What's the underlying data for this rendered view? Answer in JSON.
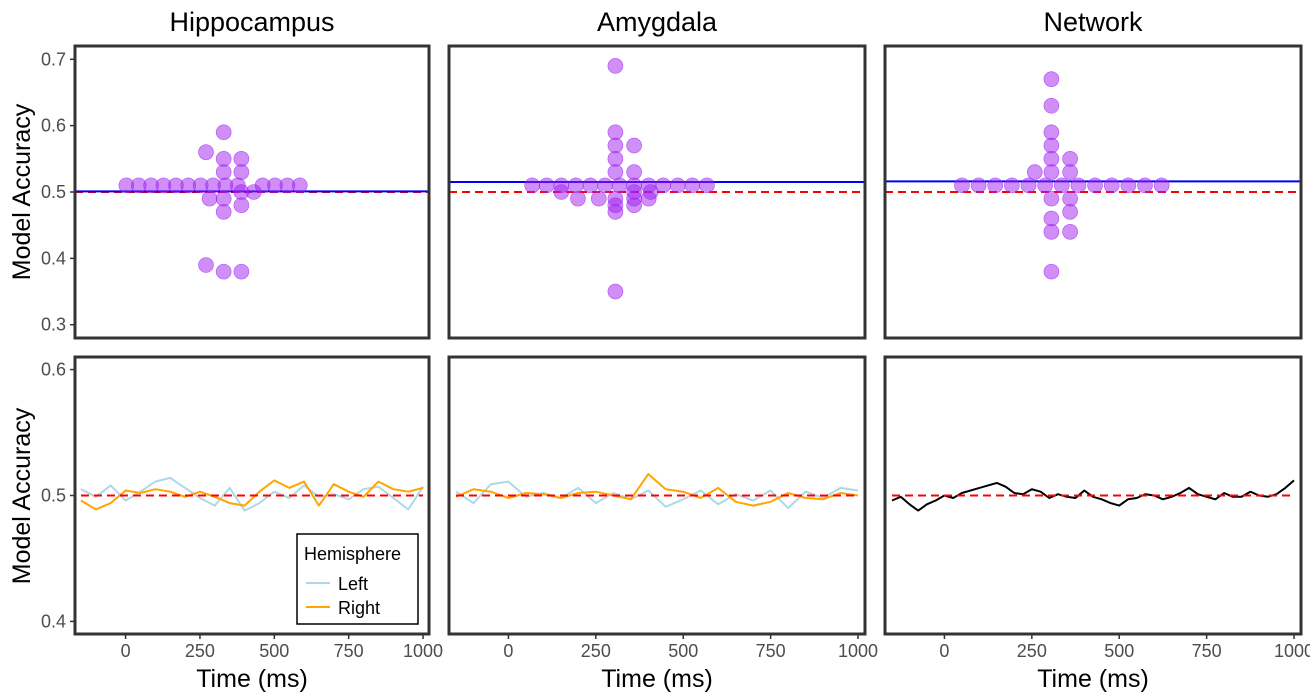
{
  "figure": {
    "ylabel": "Model Accuracy",
    "xlabel": "Time (ms)"
  },
  "legend": {
    "title": "Hemisphere",
    "items": [
      {
        "label": "Left",
        "color": "#add8e6"
      },
      {
        "label": "Right",
        "color": "#ffa500"
      }
    ]
  },
  "colors": {
    "points": "#a020f0",
    "mean_line": "#0000ff",
    "chance_line": "#ff0000",
    "network_line": "#000000"
  },
  "chart_data": [
    {
      "type": "scatter",
      "panel": "top-left",
      "title": "Hippocampus",
      "ylim": [
        0.28,
        0.72
      ],
      "yticks": [
        "0.3",
        "0.4",
        "0.5",
        "0.6",
        "0.7"
      ],
      "mean_line": 0.501,
      "chance_line": 0.5,
      "points": [
        {
          "x": 0.145,
          "y": 0.51
        },
        {
          "x": 0.18,
          "y": 0.51
        },
        {
          "x": 0.215,
          "y": 0.51
        },
        {
          "x": 0.25,
          "y": 0.51
        },
        {
          "x": 0.285,
          "y": 0.51
        },
        {
          "x": 0.32,
          "y": 0.51
        },
        {
          "x": 0.355,
          "y": 0.51
        },
        {
          "x": 0.39,
          "y": 0.51
        },
        {
          "x": 0.425,
          "y": 0.51
        },
        {
          "x": 0.46,
          "y": 0.51
        },
        {
          "x": 0.53,
          "y": 0.51
        },
        {
          "x": 0.565,
          "y": 0.51
        },
        {
          "x": 0.6,
          "y": 0.51
        },
        {
          "x": 0.635,
          "y": 0.51
        },
        {
          "x": 0.42,
          "y": 0.59
        },
        {
          "x": 0.37,
          "y": 0.56
        },
        {
          "x": 0.42,
          "y": 0.55
        },
        {
          "x": 0.47,
          "y": 0.55
        },
        {
          "x": 0.42,
          "y": 0.53
        },
        {
          "x": 0.47,
          "y": 0.53
        },
        {
          "x": 0.38,
          "y": 0.49
        },
        {
          "x": 0.42,
          "y": 0.49
        },
        {
          "x": 0.47,
          "y": 0.5
        },
        {
          "x": 0.505,
          "y": 0.5
        },
        {
          "x": 0.47,
          "y": 0.48
        },
        {
          "x": 0.42,
          "y": 0.47
        },
        {
          "x": 0.37,
          "y": 0.39
        },
        {
          "x": 0.42,
          "y": 0.38
        },
        {
          "x": 0.47,
          "y": 0.38
        }
      ]
    },
    {
      "type": "scatter",
      "panel": "top-middle",
      "title": "Amygdala",
      "ylim": [
        0.28,
        0.72
      ],
      "yticks": [
        "0.3",
        "0.4",
        "0.5",
        "0.6",
        "0.7"
      ],
      "mean_line": 0.515,
      "chance_line": 0.5,
      "points": [
        {
          "x": 0.2,
          "y": 0.51
        },
        {
          "x": 0.235,
          "y": 0.51
        },
        {
          "x": 0.27,
          "y": 0.51
        },
        {
          "x": 0.305,
          "y": 0.51
        },
        {
          "x": 0.34,
          "y": 0.51
        },
        {
          "x": 0.375,
          "y": 0.51
        },
        {
          "x": 0.41,
          "y": 0.51
        },
        {
          "x": 0.445,
          "y": 0.51
        },
        {
          "x": 0.48,
          "y": 0.51
        },
        {
          "x": 0.515,
          "y": 0.51
        },
        {
          "x": 0.55,
          "y": 0.51
        },
        {
          "x": 0.585,
          "y": 0.51
        },
        {
          "x": 0.62,
          "y": 0.51
        },
        {
          "x": 0.4,
          "y": 0.69
        },
        {
          "x": 0.4,
          "y": 0.59
        },
        {
          "x": 0.4,
          "y": 0.57
        },
        {
          "x": 0.445,
          "y": 0.57
        },
        {
          "x": 0.4,
          "y": 0.55
        },
        {
          "x": 0.4,
          "y": 0.53
        },
        {
          "x": 0.445,
          "y": 0.53
        },
        {
          "x": 0.27,
          "y": 0.5
        },
        {
          "x": 0.445,
          "y": 0.5
        },
        {
          "x": 0.485,
          "y": 0.5
        },
        {
          "x": 0.31,
          "y": 0.49
        },
        {
          "x": 0.36,
          "y": 0.49
        },
        {
          "x": 0.4,
          "y": 0.49
        },
        {
          "x": 0.445,
          "y": 0.49
        },
        {
          "x": 0.48,
          "y": 0.49
        },
        {
          "x": 0.4,
          "y": 0.48
        },
        {
          "x": 0.445,
          "y": 0.48
        },
        {
          "x": 0.4,
          "y": 0.47
        },
        {
          "x": 0.4,
          "y": 0.35
        }
      ]
    },
    {
      "type": "scatter",
      "panel": "top-right",
      "title": "Network",
      "ylim": [
        0.28,
        0.72
      ],
      "yticks": [
        "0.3",
        "0.4",
        "0.5",
        "0.6",
        "0.7"
      ],
      "mean_line": 0.516,
      "chance_line": 0.5,
      "points": [
        {
          "x": 0.185,
          "y": 0.51
        },
        {
          "x": 0.225,
          "y": 0.51
        },
        {
          "x": 0.265,
          "y": 0.51
        },
        {
          "x": 0.305,
          "y": 0.51
        },
        {
          "x": 0.345,
          "y": 0.51
        },
        {
          "x": 0.385,
          "y": 0.51
        },
        {
          "x": 0.425,
          "y": 0.51
        },
        {
          "x": 0.465,
          "y": 0.51
        },
        {
          "x": 0.505,
          "y": 0.51
        },
        {
          "x": 0.545,
          "y": 0.51
        },
        {
          "x": 0.585,
          "y": 0.51
        },
        {
          "x": 0.625,
          "y": 0.51
        },
        {
          "x": 0.665,
          "y": 0.51
        },
        {
          "x": 0.4,
          "y": 0.67
        },
        {
          "x": 0.4,
          "y": 0.63
        },
        {
          "x": 0.4,
          "y": 0.59
        },
        {
          "x": 0.4,
          "y": 0.57
        },
        {
          "x": 0.4,
          "y": 0.55
        },
        {
          "x": 0.445,
          "y": 0.55
        },
        {
          "x": 0.36,
          "y": 0.53
        },
        {
          "x": 0.4,
          "y": 0.53
        },
        {
          "x": 0.445,
          "y": 0.53
        },
        {
          "x": 0.4,
          "y": 0.49
        },
        {
          "x": 0.445,
          "y": 0.49
        },
        {
          "x": 0.445,
          "y": 0.47
        },
        {
          "x": 0.4,
          "y": 0.46
        },
        {
          "x": 0.4,
          "y": 0.44
        },
        {
          "x": 0.445,
          "y": 0.44
        },
        {
          "x": 0.4,
          "y": 0.38
        }
      ]
    },
    {
      "type": "line",
      "panel": "bottom-left",
      "xlim": [
        -170,
        1020
      ],
      "ylim": [
        0.39,
        0.61
      ],
      "xticks": [
        "0",
        "250",
        "500",
        "750",
        "1000"
      ],
      "yticks": [
        "0.4",
        "0.5",
        "0.6"
      ],
      "chance_line": 0.5,
      "series": [
        {
          "name": "Left",
          "x": [
            -150,
            -100,
            -50,
            0,
            50,
            100,
            150,
            200,
            250,
            300,
            350,
            400,
            450,
            500,
            550,
            600,
            650,
            700,
            750,
            800,
            850,
            900,
            950,
            1000
          ],
          "y": [
            0.505,
            0.499,
            0.508,
            0.496,
            0.503,
            0.511,
            0.514,
            0.506,
            0.498,
            0.492,
            0.506,
            0.488,
            0.494,
            0.503,
            0.498,
            0.508,
            0.499,
            0.501,
            0.497,
            0.505,
            0.507,
            0.498,
            0.489,
            0.507
          ]
        },
        {
          "name": "Right",
          "x": [
            -150,
            -100,
            -50,
            0,
            50,
            100,
            150,
            200,
            250,
            300,
            350,
            400,
            450,
            500,
            550,
            600,
            650,
            700,
            750,
            800,
            850,
            900,
            950,
            1000
          ],
          "y": [
            0.496,
            0.489,
            0.494,
            0.504,
            0.502,
            0.505,
            0.503,
            0.499,
            0.503,
            0.499,
            0.494,
            0.492,
            0.503,
            0.512,
            0.506,
            0.511,
            0.492,
            0.509,
            0.503,
            0.499,
            0.511,
            0.505,
            0.503,
            0.506
          ]
        }
      ]
    },
    {
      "type": "line",
      "panel": "bottom-middle",
      "xlim": [
        -170,
        1020
      ],
      "ylim": [
        0.39,
        0.61
      ],
      "xticks": [
        "0",
        "250",
        "500",
        "750",
        "1000"
      ],
      "yticks": [
        "0.4",
        "0.5",
        "0.6"
      ],
      "chance_line": 0.5,
      "series": [
        {
          "name": "Left",
          "x": [
            -150,
            -100,
            -50,
            0,
            50,
            100,
            150,
            200,
            250,
            300,
            350,
            400,
            450,
            500,
            550,
            600,
            650,
            700,
            750,
            800,
            850,
            900,
            950,
            1000
          ],
          "y": [
            0.503,
            0.494,
            0.509,
            0.511,
            0.499,
            0.502,
            0.498,
            0.506,
            0.494,
            0.502,
            0.497,
            0.504,
            0.491,
            0.497,
            0.504,
            0.493,
            0.501,
            0.496,
            0.504,
            0.49,
            0.503,
            0.498,
            0.506,
            0.504
          ]
        },
        {
          "name": "Right",
          "x": [
            -150,
            -100,
            -50,
            0,
            50,
            100,
            150,
            200,
            250,
            300,
            350,
            400,
            450,
            500,
            550,
            600,
            650,
            700,
            750,
            800,
            850,
            900,
            950,
            1000
          ],
          "y": [
            0.499,
            0.505,
            0.503,
            0.498,
            0.502,
            0.501,
            0.498,
            0.502,
            0.503,
            0.5,
            0.497,
            0.517,
            0.505,
            0.503,
            0.498,
            0.506,
            0.495,
            0.492,
            0.495,
            0.502,
            0.498,
            0.497,
            0.502,
            0.5
          ]
        }
      ]
    },
    {
      "type": "line",
      "panel": "bottom-right",
      "xlim": [
        -170,
        1020
      ],
      "ylim": [
        0.39,
        0.61
      ],
      "xticks": [
        "0",
        "250",
        "500",
        "750",
        "1000"
      ],
      "yticks": [
        "0.4",
        "0.5",
        "0.6"
      ],
      "chance_line": 0.5,
      "series": [
        {
          "name": "",
          "x": [
            -150,
            -125,
            -100,
            -75,
            -50,
            -25,
            0,
            25,
            50,
            75,
            100,
            125,
            150,
            175,
            200,
            225,
            250,
            275,
            300,
            325,
            350,
            375,
            400,
            425,
            450,
            475,
            500,
            525,
            550,
            575,
            600,
            625,
            650,
            675,
            700,
            725,
            750,
            775,
            800,
            825,
            850,
            875,
            900,
            925,
            950,
            975,
            1000
          ],
          "y": [
            0.496,
            0.499,
            0.493,
            0.488,
            0.493,
            0.496,
            0.5,
            0.498,
            0.502,
            0.504,
            0.506,
            0.508,
            0.51,
            0.507,
            0.502,
            0.501,
            0.505,
            0.503,
            0.498,
            0.501,
            0.499,
            0.498,
            0.504,
            0.499,
            0.497,
            0.494,
            0.492,
            0.497,
            0.498,
            0.501,
            0.5,
            0.497,
            0.499,
            0.502,
            0.506,
            0.501,
            0.499,
            0.497,
            0.502,
            0.499,
            0.499,
            0.503,
            0.5,
            0.499,
            0.501,
            0.506,
            0.512
          ]
        }
      ]
    }
  ]
}
